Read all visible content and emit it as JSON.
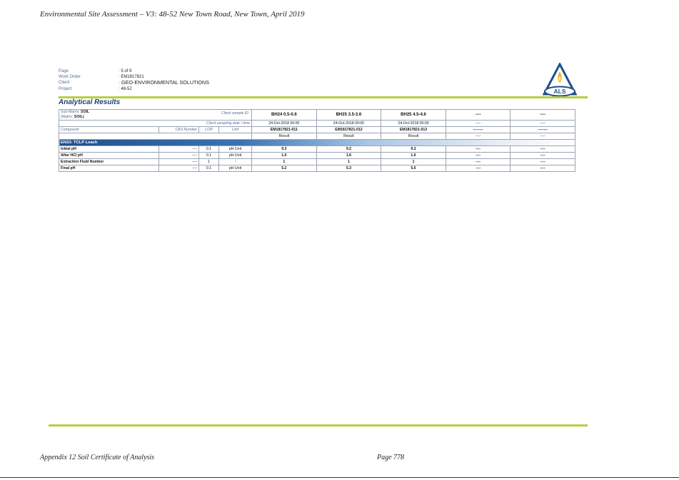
{
  "document": {
    "header": "Environmental Site Assessment – V3: 48-52 New Town Road, New Town, April 2019",
    "footer_left": "Appendix 12 Soil Certificate of Analysis",
    "footer_right": "Page 778"
  },
  "meta": [
    {
      "label": "Page",
      "value": "5 of 9"
    },
    {
      "label": "Work Order",
      "value": "EM1817821"
    },
    {
      "label": "Client",
      "value": "GEO-ENVIRONMENTAL SOLUTIONS"
    },
    {
      "label": "Project",
      "value": "48-52"
    }
  ],
  "logo": {
    "text": "ALS",
    "colors": {
      "blue": "#1f4f8c",
      "flame": "#f2b21d"
    }
  },
  "section_title": "Analytical Results",
  "table": {
    "submatrix_label": "Sub-Matrix:",
    "submatrix_value": "SOIL",
    "matrix_label": "(Matrix:",
    "matrix_value": "SOIL)",
    "client_sample_id_label": "Client sample ID",
    "client_sampling_label": "Client sampling date / time",
    "compound_label": "Compound",
    "cas_label": "CAS Number",
    "lor_label": "LOR",
    "unit_label": "Unit",
    "samples": [
      {
        "id": "BH24 0.5-0.6",
        "date": "24-Oct-2018 00:00",
        "lab": "EM1817821-011",
        "result": "Result"
      },
      {
        "id": "BH25 3.5-3.6",
        "date": "24-Oct-2018 00:00",
        "lab": "EM1817821-012",
        "result": "Result"
      },
      {
        "id": "BH25 4.5-4.6",
        "date": "24-Oct-2018 00:00",
        "lab": "EM1817821-013",
        "result": "Result"
      },
      {
        "id": "----",
        "date": "----",
        "lab": "--------",
        "result": "----"
      },
      {
        "id": "----",
        "date": "----",
        "lab": "--------",
        "result": "----"
      }
    ],
    "section": "EN33: TCLP Leach",
    "rows": [
      {
        "compound": "Initial pH",
        "cas": "----",
        "lor": "0.1",
        "unit": "pH Unit",
        "values": [
          "9.3",
          "9.2",
          "9.2",
          "----",
          "----"
        ]
      },
      {
        "compound": "After HCl pH",
        "cas": "----",
        "lor": "0.1",
        "unit": "pH Unit",
        "values": [
          "1.5",
          "1.6",
          "1.6",
          "----",
          "----"
        ]
      },
      {
        "compound": "Extraction Fluid Number",
        "cas": "----",
        "lor": "1",
        "unit": "-",
        "values": [
          "1",
          "1",
          "1",
          "----",
          "----"
        ]
      },
      {
        "compound": "Final pH",
        "cas": "----",
        "lor": "0.1",
        "unit": "pH Unit",
        "values": [
          "5.2",
          "5.3",
          "5.6",
          "----",
          "----"
        ]
      }
    ]
  }
}
